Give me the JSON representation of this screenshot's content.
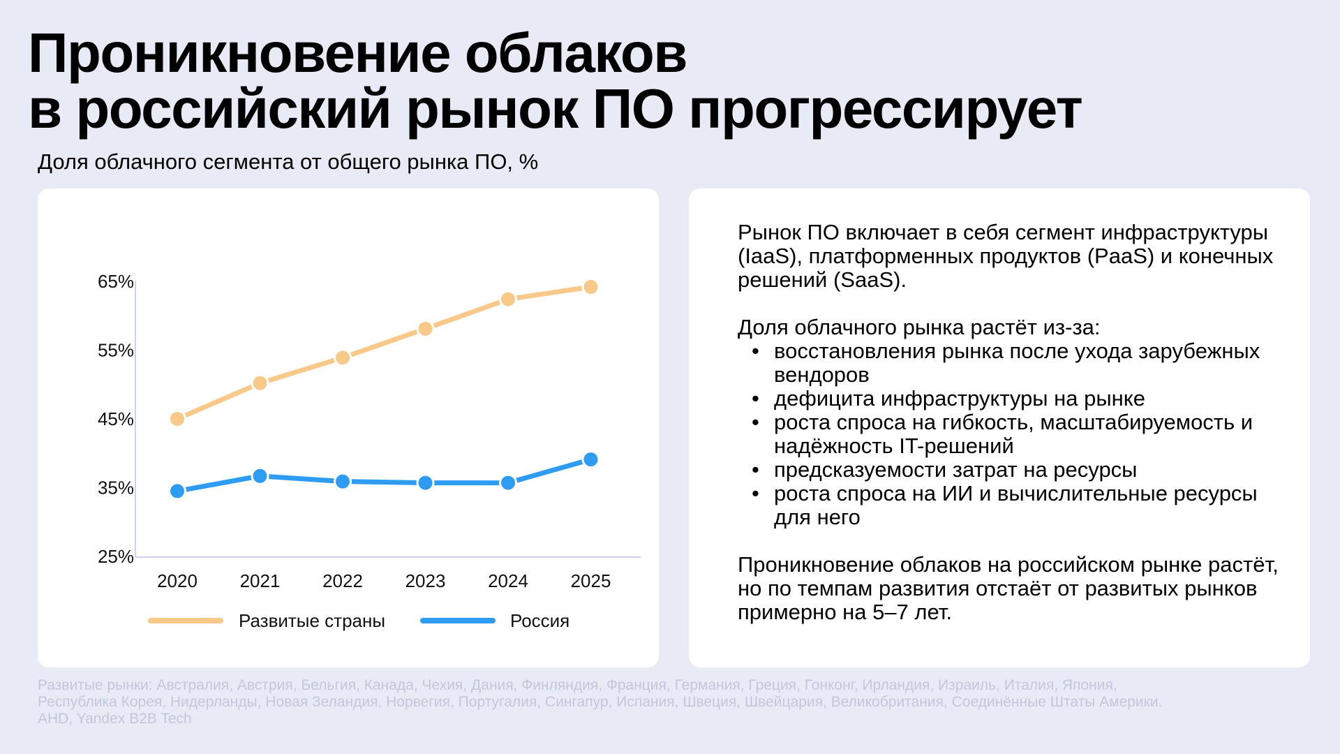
{
  "title_line1": "Проникновение облаков",
  "title_line2": "в российский рынок ПО прогрессирует",
  "subtitle": "Доля облачного сегмента от общего рынка ПО, %",
  "chart_data": {
    "type": "line",
    "x": [
      "2020",
      "2021",
      "2022",
      "2023",
      "2024",
      "2025"
    ],
    "y_ticks": [
      "25%",
      "35%",
      "45%",
      "55%",
      "65%"
    ],
    "y_tick_values": [
      25,
      35,
      45,
      55,
      65
    ],
    "ylim": [
      25,
      65
    ],
    "grid": false,
    "legend_position": "bottom",
    "series": [
      {
        "name": "Развитые страны",
        "color": "#f9c98a",
        "values": [
          45,
          50.2,
          53.9,
          58.1,
          62.4,
          64.2
        ]
      },
      {
        "name": "Россия",
        "color": "#2f9cf4",
        "values": [
          34.5,
          36.7,
          35.9,
          35.7,
          35.7,
          39.1
        ]
      }
    ]
  },
  "right_panel": {
    "para1": "Рынок ПО включает в себя сегмент инфраструктуры (IaaS), платформенных продуктов (PaaS) и конечных решений (SaaS).",
    "para2_intro": "Доля облачного рынка растёт из-за:",
    "bullet_symbol": "•",
    "bullets": [
      "восстановления рынка после ухода зарубежных вендоров",
      "дефицита инфраструктуры на рынке",
      "роста спроса на гибкость, масштабируемость и надёжность IT-решений",
      "предсказуемости затрат на ресурсы",
      "роста спроса на ИИ и вычислительные ресурсы для него"
    ],
    "para3": "Проникновение облаков на российском рынке растёт, но по темпам развития отстаёт от развитых рынков примерно на 5–7 лет."
  },
  "footnote": {
    "line1": "Развитые рынки: Австралия, Австрия, Бельгия, Канада, Чехия, Дания, Финляндия, Франция, Германия, Греция, Гонконг, Ирландия, Израиль, Италия, Япония,",
    "line2": "Республика Корея, Нидерланды, Новая Зеландия, Норвегия, Португалия, Сингапур, Испания, Швеция, Швейцария, Великобритания, Соединённые Штаты Америки.",
    "line3": "AHD, Yandex B2B Tech"
  }
}
